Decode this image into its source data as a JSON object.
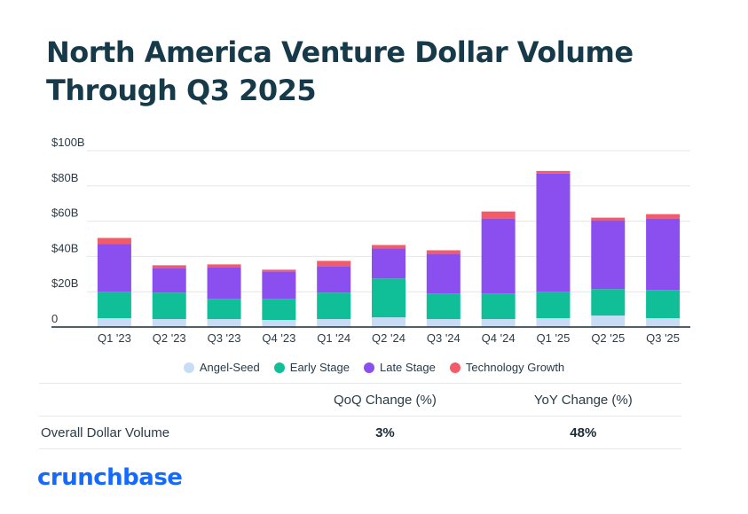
{
  "title_lines": [
    "North America Venture Dollar Volume",
    "Through Q3 2025"
  ],
  "colors": {
    "angel_seed": "#c9dcf6",
    "early_stage": "#10bf98",
    "late_stage": "#8b4ff0",
    "technology_growth": "#f45b69",
    "title": "#163a4a",
    "brand": "#146aff"
  },
  "chart_data": {
    "type": "bar",
    "stacked": true,
    "categories": [
      "Q1 '23",
      "Q2 '23",
      "Q3 '23",
      "Q4 '23",
      "Q1 '24",
      "Q2 '24",
      "Q3 '24",
      "Q4 '24",
      "Q1 '25",
      "Q2 '25",
      "Q3 '25"
    ],
    "y_tick_labels": [
      "0",
      "$20B",
      "$40B",
      "$60B",
      "$80B",
      "$100B"
    ],
    "y_ticks": [
      0,
      20,
      40,
      60,
      80,
      100
    ],
    "ylim": [
      0,
      100
    ],
    "grid": true,
    "legend_position": "bottom",
    "series": [
      {
        "name": "Angel-Seed",
        "values": [
          5,
          4.5,
          4.5,
          4,
          4.5,
          5.5,
          4.5,
          4.5,
          5,
          6.5,
          5
        ],
        "color_key": "angel_seed"
      },
      {
        "name": "Early Stage",
        "values": [
          15,
          15,
          11.5,
          12,
          15,
          22,
          14.5,
          14.5,
          15,
          15,
          16
        ],
        "color_key": "early_stage"
      },
      {
        "name": "Late Stage",
        "values": [
          27,
          14,
          18,
          15.5,
          15,
          17,
          22.5,
          42.5,
          67,
          39,
          40.5
        ],
        "color_key": "late_stage"
      },
      {
        "name": "Technology Growth",
        "values": [
          3.5,
          1.5,
          1.5,
          1,
          3,
          2,
          2,
          4,
          1.5,
          1.5,
          2.5
        ],
        "color_key": "technology_growth"
      }
    ]
  },
  "summary": {
    "col_qoq": "QoQ Change (%)",
    "col_yoy": "YoY Change (%)",
    "row_label": "Overall Dollar Volume",
    "qoq_value": "3%",
    "yoy_value": "48%"
  },
  "brand": "crunchbase"
}
